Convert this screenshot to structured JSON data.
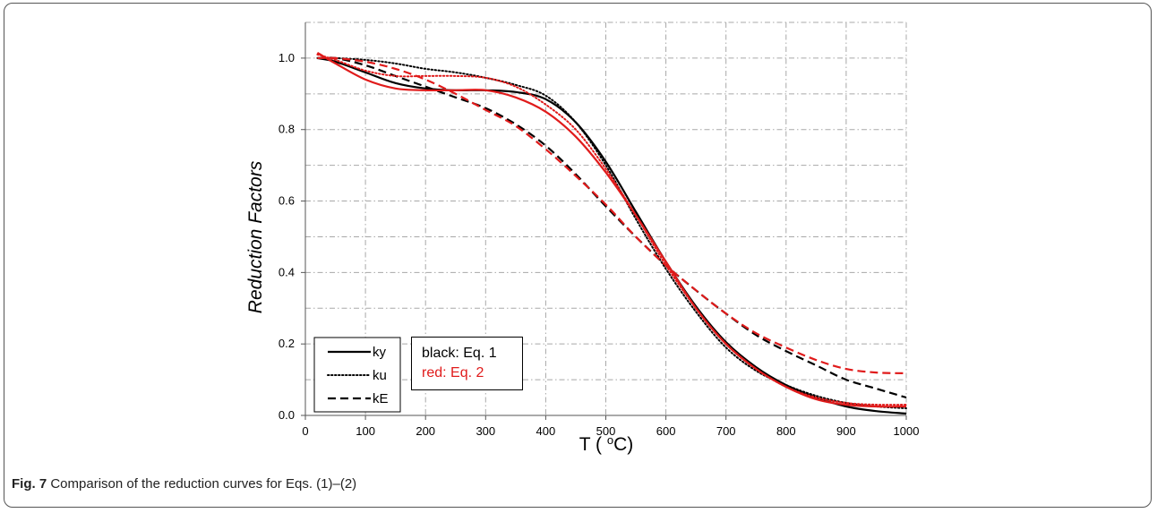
{
  "caption": {
    "label": "Fig. 7",
    "text": "Comparison of the reduction curves for Eqs. (1)–(2)"
  },
  "note": {
    "line1": "black: Eq. 1",
    "line2": "red: Eq. 2",
    "line1_color": "#000000",
    "line2_color": "#e01b1b"
  },
  "chart_data": {
    "type": "line",
    "title": "",
    "xlabel": "T (oC)",
    "ylabel": "Reduction Factors",
    "xlim": [
      0,
      1000
    ],
    "ylim": [
      0,
      1.1
    ],
    "xticks": [
      0,
      100,
      200,
      300,
      400,
      500,
      600,
      700,
      800,
      900,
      1000
    ],
    "yticks": [
      0.0,
      0.2,
      0.4,
      0.6,
      0.8,
      1.0
    ],
    "ytick_labels": [
      "0.0",
      "0.2",
      "0.4",
      "0.6",
      "0.8",
      "1.0"
    ],
    "grid": true,
    "legend_position": "bottom-left",
    "legend": [
      {
        "name": "ky",
        "style": "solid"
      },
      {
        "name": "ku",
        "style": "dotted"
      },
      {
        "name": "kE",
        "style": "dashed"
      }
    ],
    "series": [
      {
        "name": "ky",
        "color": "#000000",
        "style": "solid",
        "x": [
          20,
          50,
          100,
          150,
          200,
          250,
          300,
          350,
          400,
          450,
          500,
          550,
          600,
          650,
          700,
          750,
          800,
          850,
          900,
          950,
          1000
        ],
        "y": [
          1.0,
          0.99,
          0.96,
          0.93,
          0.915,
          0.91,
          0.91,
          0.905,
          0.885,
          0.82,
          0.71,
          0.57,
          0.43,
          0.305,
          0.205,
          0.135,
          0.085,
          0.05,
          0.025,
          0.012,
          0.005
        ]
      },
      {
        "name": "ku",
        "color": "#000000",
        "style": "dotted",
        "x": [
          20,
          50,
          100,
          150,
          200,
          250,
          300,
          350,
          400,
          450,
          500,
          550,
          600,
          650,
          700,
          750,
          800,
          850,
          900,
          950,
          1000
        ],
        "y": [
          1.0,
          1.0,
          0.995,
          0.985,
          0.97,
          0.96,
          0.945,
          0.925,
          0.895,
          0.82,
          0.7,
          0.55,
          0.41,
          0.29,
          0.19,
          0.125,
          0.085,
          0.055,
          0.035,
          0.025,
          0.02
        ]
      },
      {
        "name": "kE",
        "color": "#000000",
        "style": "dashed",
        "x": [
          20,
          50,
          100,
          150,
          200,
          250,
          300,
          350,
          400,
          450,
          500,
          550,
          600,
          650,
          700,
          750,
          800,
          850,
          900,
          950,
          1000
        ],
        "y": [
          1.0,
          1.0,
          0.98,
          0.95,
          0.92,
          0.89,
          0.86,
          0.815,
          0.755,
          0.675,
          0.585,
          0.5,
          0.42,
          0.35,
          0.285,
          0.225,
          0.18,
          0.14,
          0.1,
          0.075,
          0.05
        ]
      },
      {
        "name": "ky",
        "color": "#e01b1b",
        "style": "solid",
        "x": [
          20,
          30,
          50,
          100,
          150,
          200,
          250,
          300,
          350,
          400,
          450,
          500,
          550,
          600,
          650,
          700,
          750,
          800,
          850,
          900,
          950,
          1000
        ],
        "y": [
          1.015,
          1.005,
          0.985,
          0.94,
          0.915,
          0.91,
          0.91,
          0.91,
          0.89,
          0.85,
          0.78,
          0.68,
          0.56,
          0.43,
          0.3,
          0.2,
          0.13,
          0.08,
          0.045,
          0.03,
          0.025,
          0.025
        ]
      },
      {
        "name": "ku",
        "color": "#e01b1b",
        "style": "dotted",
        "x": [
          20,
          50,
          100,
          150,
          200,
          250,
          300,
          350,
          400,
          450,
          500,
          550,
          600,
          650,
          700,
          750,
          800,
          850,
          900,
          950,
          1000
        ],
        "y": [
          1.01,
          0.995,
          0.965,
          0.95,
          0.95,
          0.95,
          0.945,
          0.92,
          0.87,
          0.8,
          0.69,
          0.56,
          0.42,
          0.3,
          0.2,
          0.13,
          0.08,
          0.05,
          0.035,
          0.03,
          0.03
        ]
      },
      {
        "name": "kE",
        "color": "#e01b1b",
        "style": "dashed",
        "x": [
          20,
          50,
          100,
          150,
          200,
          250,
          300,
          350,
          400,
          450,
          500,
          550,
          600,
          650,
          700,
          750,
          800,
          850,
          900,
          950,
          1000
        ],
        "y": [
          1.0,
          1.0,
          0.99,
          0.97,
          0.94,
          0.9,
          0.855,
          0.81,
          0.745,
          0.67,
          0.59,
          0.5,
          0.42,
          0.35,
          0.285,
          0.23,
          0.19,
          0.155,
          0.13,
          0.12,
          0.118
        ]
      }
    ]
  }
}
